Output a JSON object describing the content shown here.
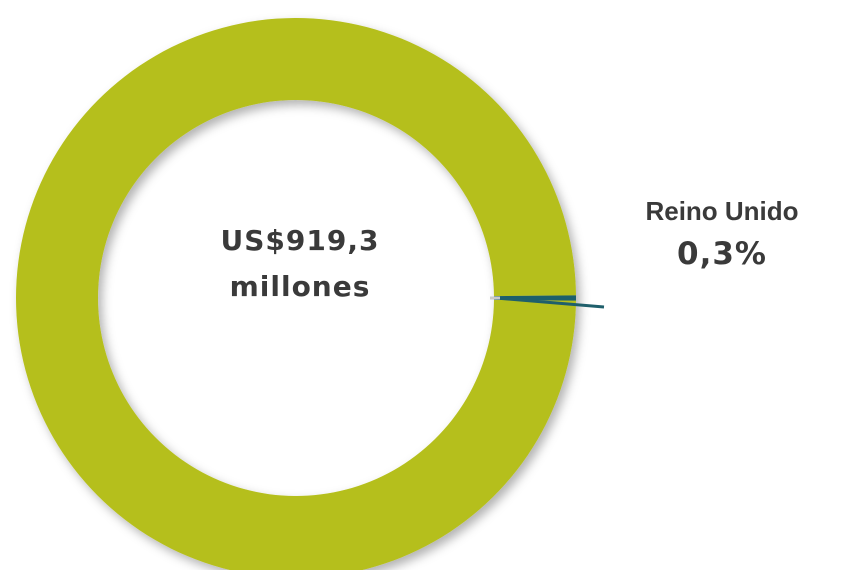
{
  "chart_data": {
    "type": "pie",
    "style": "donut",
    "center_text": [
      "US$919,3",
      "millones"
    ],
    "slices": [
      {
        "label": "",
        "percent": 99.7,
        "color": "#b5bf1a"
      },
      {
        "label": "Reino Unido",
        "percent": 0.3,
        "color": "#1f5f6b",
        "value_label": "0,3%"
      }
    ],
    "legend": "none"
  }
}
